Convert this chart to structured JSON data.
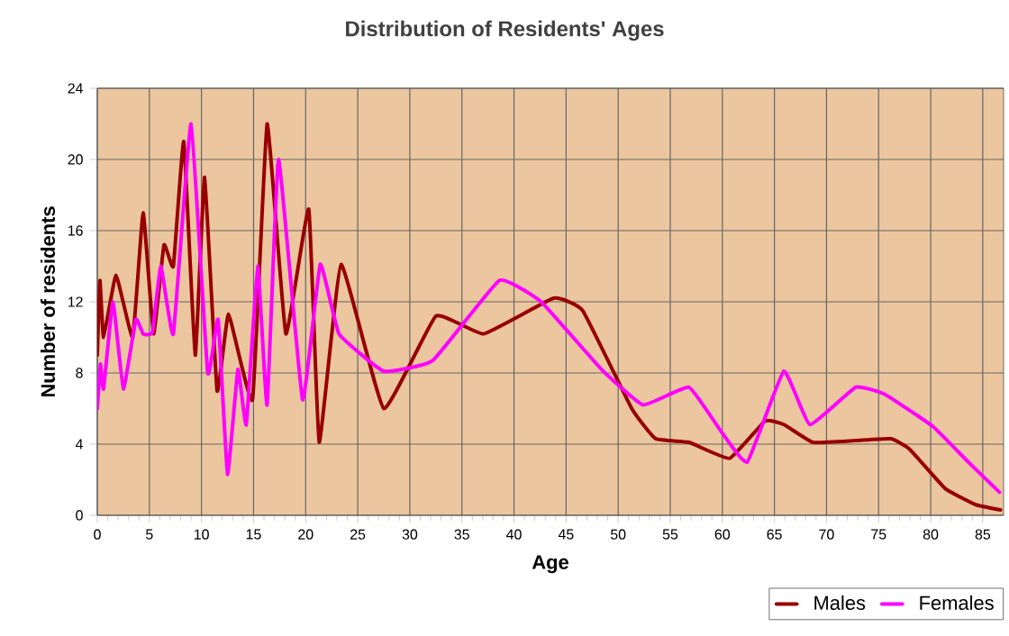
{
  "chart_data": {
    "type": "line",
    "title": "Distribution of Residents' Ages",
    "xlabel": "Age",
    "ylabel": "Number of residents",
    "xlim": [
      0,
      87
    ],
    "xticks": [
      0,
      5,
      10,
      15,
      20,
      25,
      30,
      35,
      40,
      45,
      50,
      55,
      60,
      65,
      70,
      75,
      80,
      85
    ],
    "ylim": [
      0,
      24
    ],
    "yticks": [
      0,
      4,
      8,
      12,
      16,
      20,
      24
    ],
    "grid": true,
    "legend": "bottom right",
    "marker": "none",
    "line_style": "solid",
    "series": [
      {
        "name": "Males",
        "color": "#990000",
        "x": [
          0,
          0.25,
          0.6,
          1.8,
          3.4,
          4.4,
          5.4,
          6.4,
          7.3,
          8.3,
          9.4,
          10.3,
          11.5,
          12.6,
          14.9,
          16.3,
          18.1,
          20.3,
          21.3,
          23.4,
          27.5,
          32.5,
          37.1,
          43.8,
          46.6,
          51.3,
          53.6,
          56.8,
          60.7,
          64.1,
          65.9,
          68.7,
          72.8,
          76.2,
          78,
          81.4,
          84.3,
          86.7
        ],
        "values": [
          9,
          13.2,
          10,
          13.5,
          10,
          17,
          10.2,
          15.2,
          14,
          21,
          9,
          19,
          7,
          11.3,
          6.5,
          22,
          10.2,
          17.2,
          4.1,
          14.1,
          6,
          11.2,
          10.2,
          12.2,
          11.5,
          6,
          4.3,
          4.1,
          3.2,
          5.3,
          5.1,
          4.1,
          4.2,
          4.3,
          3.7,
          1.5,
          0.6,
          0.3
        ]
      },
      {
        "name": "Females",
        "color": "#ff00ff",
        "x": [
          0,
          0.3,
          0.6,
          1.5,
          2.5,
          3.7,
          4.4,
          5.3,
          6.1,
          7.3,
          9,
          10.6,
          11.6,
          12.5,
          13.5,
          14.3,
          15.4,
          16.3,
          17.4,
          19.7,
          21.4,
          23.2,
          27.5,
          32.2,
          38.6,
          42.6,
          48.4,
          52.4,
          56.8,
          59.9,
          62.4,
          65.9,
          68.4,
          72.8,
          75.6,
          80.2,
          83.6,
          86.6
        ],
        "values": [
          6,
          8.5,
          7.1,
          12,
          7.1,
          11,
          10.2,
          10.3,
          14,
          10.2,
          22,
          8,
          11,
          2.3,
          8.2,
          5.1,
          14,
          6.2,
          20,
          6.5,
          14.1,
          10.2,
          8.1,
          8.7,
          13.2,
          12,
          8.2,
          6.2,
          7.2,
          4.7,
          3,
          8.1,
          5.1,
          7.2,
          6.8,
          5,
          3,
          1.3
        ]
      }
    ]
  }
}
